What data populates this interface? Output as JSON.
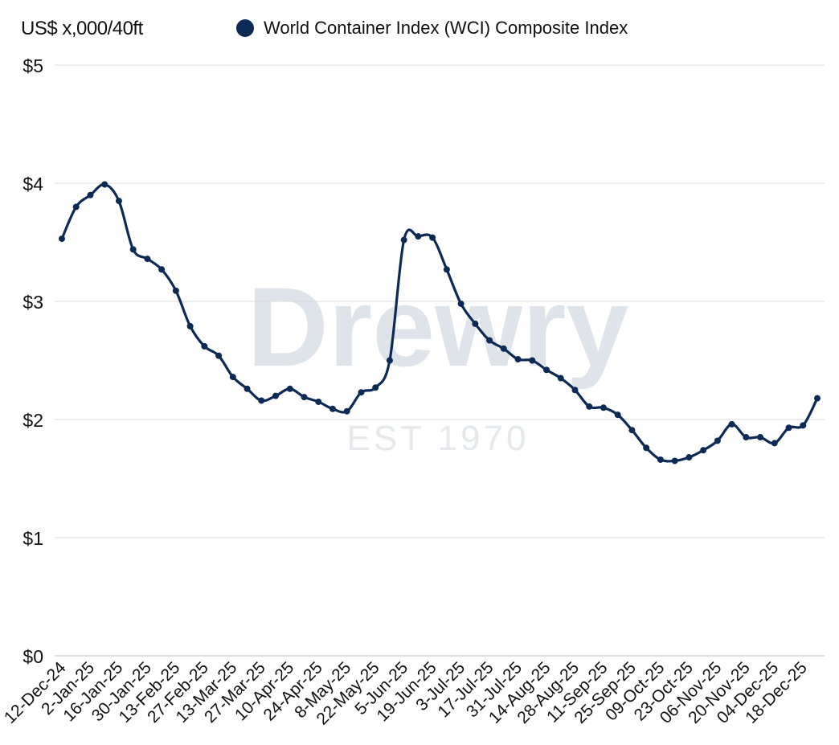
{
  "chart_data": {
    "type": "line",
    "ylabel": "US$ x,000/40ft",
    "ylim": [
      0,
      5
    ],
    "yticks": [
      {
        "value": 0,
        "label": "$0"
      },
      {
        "value": 1,
        "label": "$1"
      },
      {
        "value": 2,
        "label": "$2"
      },
      {
        "value": 3,
        "label": "$3"
      },
      {
        "value": 4,
        "label": "$4"
      },
      {
        "value": 5,
        "label": "$5"
      }
    ],
    "grid": true,
    "legend_position": "top",
    "x_tick_labels": [
      "12-Dec-24",
      "2-Jan-25",
      "16-Jan-25",
      "30-Jan-25",
      "13-Feb-25",
      "27-Feb-25",
      "13-Mar-25",
      "27-Mar-25",
      "10-Apr-25",
      "24-Apr-25",
      "8-May-25",
      "22-May-25",
      "5-Jun-25",
      "19-Jun-25",
      "3-Jul-25",
      "17-Jul-25",
      "31-Jul-25",
      "14-Aug-25",
      "28-Aug-25",
      "11-Sep-25",
      "25-Sep-25",
      "09-Oct-25",
      "23-Oct-25",
      "06-Nov-25",
      "20-Nov-25",
      "04-Dec-25",
      "18-Dec-25"
    ],
    "series": [
      {
        "name": "World Container Index (WCI) Composite Index",
        "color": "#0b2a55",
        "values": [
          3.53,
          3.8,
          3.9,
          3.99,
          3.85,
          3.44,
          3.36,
          3.27,
          3.09,
          2.79,
          2.62,
          2.54,
          2.36,
          2.26,
          2.16,
          2.2,
          2.26,
          2.19,
          2.15,
          2.09,
          2.07,
          2.23,
          2.27,
          2.5,
          3.52,
          3.55,
          3.54,
          3.27,
          2.98,
          2.81,
          2.67,
          2.6,
          2.51,
          2.5,
          2.42,
          2.35,
          2.25,
          2.11,
          2.1,
          2.04,
          1.91,
          1.76,
          1.66,
          1.65,
          1.68,
          1.74,
          1.82,
          1.96,
          1.85,
          1.85,
          1.8,
          1.93,
          1.95,
          2.18
        ]
      }
    ],
    "watermark": {
      "logo": "Drewry",
      "tagline": "EST 1970"
    }
  }
}
